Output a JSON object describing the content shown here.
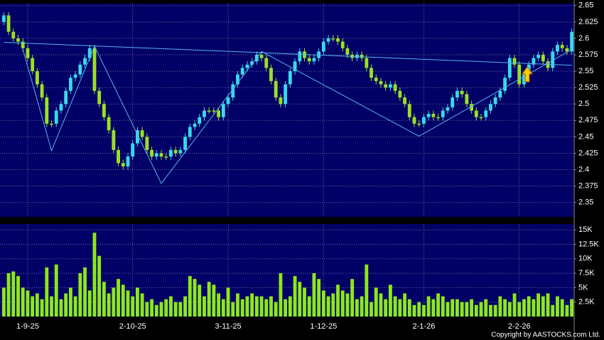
{
  "chart_data": {
    "type": "candlestick",
    "categories": [
      null,
      null,
      null,
      null,
      null,
      "1-9-25",
      null,
      null,
      null,
      null,
      null,
      null,
      null,
      null,
      null,
      null,
      null,
      null,
      null,
      null,
      null,
      null,
      null,
      null,
      null,
      null,
      null,
      "2-10-25",
      null,
      null,
      null,
      null,
      null,
      null,
      null,
      null,
      null,
      null,
      null,
      null,
      null,
      null,
      null,
      null,
      null,
      null,
      null,
      "3-11-25",
      null,
      null,
      null,
      null,
      null,
      null,
      null,
      null,
      null,
      null,
      null,
      null,
      null,
      null,
      null,
      null,
      null,
      null,
      null,
      "1-12-25",
      null,
      null,
      null,
      null,
      null,
      null,
      null,
      null,
      null,
      null,
      null,
      null,
      null,
      null,
      null,
      null,
      null,
      null,
      null,
      null,
      "2-1-26",
      null,
      null,
      null,
      null,
      null,
      null,
      null,
      null,
      null,
      null,
      null,
      null,
      null,
      null,
      null,
      null,
      null,
      null,
      null,
      "2-2-26",
      null,
      null,
      null,
      null,
      null,
      null,
      null,
      null,
      null,
      null,
      null
    ],
    "open": [
      2.625,
      2.635,
      2.61,
      2.6,
      2.595,
      2.585,
      2.57,
      2.55,
      2.53,
      2.51,
      2.47,
      2.47,
      2.49,
      2.5,
      2.52,
      2.54,
      2.545,
      2.56,
      2.57,
      2.585,
      2.52,
      2.5,
      2.48,
      2.46,
      2.43,
      2.41,
      2.405,
      2.42,
      2.44,
      2.46,
      2.45,
      2.43,
      2.42,
      2.425,
      2.42,
      2.42,
      2.43,
      2.425,
      2.43,
      2.45,
      2.465,
      2.47,
      2.48,
      2.49,
      2.49,
      2.49,
      2.48,
      2.5,
      2.51,
      2.53,
      2.545,
      2.555,
      2.56,
      2.565,
      2.575,
      2.57,
      2.555,
      2.535,
      2.51,
      2.5,
      2.53,
      2.55,
      2.565,
      2.58,
      2.57,
      2.565,
      2.57,
      2.58,
      2.595,
      2.6,
      2.6,
      2.595,
      2.585,
      2.575,
      2.57,
      2.575,
      2.57,
      2.555,
      2.54,
      2.535,
      2.53,
      2.525,
      2.53,
      2.52,
      2.51,
      2.5,
      2.48,
      2.47,
      2.47,
      2.48,
      2.485,
      2.48,
      2.48,
      2.49,
      2.495,
      2.51,
      2.52,
      2.515,
      2.5,
      2.49,
      2.48,
      2.48,
      2.49,
      2.5,
      2.51,
      2.52,
      2.54,
      2.57,
      2.56,
      2.53,
      2.545,
      2.56,
      2.57,
      2.575,
      2.565,
      2.555,
      2.58,
      2.59,
      2.585,
      2.58
    ],
    "high": [
      2.64,
      2.64,
      2.615,
      2.605,
      2.6,
      2.59,
      2.575,
      2.555,
      2.535,
      2.515,
      2.475,
      2.495,
      2.505,
      2.525,
      2.545,
      2.55,
      2.565,
      2.575,
      2.59,
      2.59,
      2.525,
      2.505,
      2.485,
      2.465,
      2.435,
      2.415,
      2.425,
      2.445,
      2.465,
      2.465,
      2.455,
      2.435,
      2.43,
      2.43,
      2.425,
      2.435,
      2.435,
      2.435,
      2.455,
      2.47,
      2.475,
      2.485,
      2.495,
      2.495,
      2.495,
      2.495,
      2.505,
      2.515,
      2.535,
      2.55,
      2.56,
      2.565,
      2.57,
      2.58,
      2.58,
      2.575,
      2.56,
      2.54,
      2.515,
      2.535,
      2.555,
      2.57,
      2.585,
      2.585,
      2.575,
      2.575,
      2.585,
      2.6,
      2.605,
      2.605,
      2.605,
      2.6,
      2.59,
      2.58,
      2.58,
      2.58,
      2.575,
      2.56,
      2.545,
      2.54,
      2.535,
      2.535,
      2.535,
      2.525,
      2.515,
      2.505,
      2.485,
      2.475,
      2.485,
      2.49,
      2.49,
      2.485,
      2.495,
      2.5,
      2.515,
      2.525,
      2.525,
      2.52,
      2.505,
      2.495,
      2.485,
      2.495,
      2.505,
      2.515,
      2.525,
      2.545,
      2.575,
      2.575,
      2.565,
      2.55,
      2.565,
      2.575,
      2.58,
      2.58,
      2.57,
      2.585,
      2.595,
      2.595,
      2.59,
      2.615
    ],
    "low": [
      2.62,
      2.605,
      2.595,
      2.59,
      2.58,
      2.565,
      2.545,
      2.525,
      2.505,
      2.465,
      2.465,
      2.465,
      2.485,
      2.495,
      2.515,
      2.535,
      2.54,
      2.555,
      2.565,
      2.515,
      2.495,
      2.475,
      2.455,
      2.425,
      2.405,
      2.4,
      2.4,
      2.415,
      2.435,
      2.445,
      2.425,
      2.415,
      2.415,
      2.415,
      2.415,
      2.415,
      2.42,
      2.42,
      2.425,
      2.445,
      2.46,
      2.465,
      2.475,
      2.485,
      2.485,
      2.475,
      2.475,
      2.495,
      2.505,
      2.525,
      2.54,
      2.55,
      2.555,
      2.56,
      2.565,
      2.55,
      2.53,
      2.505,
      2.495,
      2.495,
      2.525,
      2.545,
      2.56,
      2.565,
      2.56,
      2.56,
      2.565,
      2.575,
      2.59,
      2.595,
      2.59,
      2.58,
      2.57,
      2.565,
      2.565,
      2.565,
      2.55,
      2.535,
      2.53,
      2.525,
      2.52,
      2.52,
      2.515,
      2.505,
      2.495,
      2.475,
      2.465,
      2.465,
      2.465,
      2.475,
      2.475,
      2.475,
      2.475,
      2.485,
      2.49,
      2.505,
      2.51,
      2.495,
      2.485,
      2.475,
      2.475,
      2.475,
      2.485,
      2.495,
      2.505,
      2.515,
      2.535,
      2.555,
      2.525,
      2.525,
      2.54,
      2.555,
      2.565,
      2.56,
      2.55,
      2.55,
      2.575,
      2.58,
      2.575,
      2.575
    ],
    "close": [
      2.635,
      2.61,
      2.6,
      2.595,
      2.585,
      2.57,
      2.55,
      2.53,
      2.51,
      2.47,
      2.47,
      2.49,
      2.5,
      2.52,
      2.54,
      2.545,
      2.56,
      2.57,
      2.585,
      2.52,
      2.5,
      2.48,
      2.46,
      2.43,
      2.41,
      2.405,
      2.42,
      2.44,
      2.46,
      2.45,
      2.43,
      2.42,
      2.425,
      2.42,
      2.42,
      2.43,
      2.425,
      2.43,
      2.45,
      2.465,
      2.47,
      2.48,
      2.49,
      2.49,
      2.49,
      2.48,
      2.5,
      2.51,
      2.53,
      2.545,
      2.555,
      2.56,
      2.565,
      2.575,
      2.57,
      2.555,
      2.535,
      2.51,
      2.5,
      2.53,
      2.55,
      2.565,
      2.58,
      2.57,
      2.565,
      2.57,
      2.58,
      2.595,
      2.6,
      2.6,
      2.595,
      2.585,
      2.575,
      2.57,
      2.575,
      2.57,
      2.555,
      2.54,
      2.535,
      2.53,
      2.525,
      2.53,
      2.52,
      2.51,
      2.5,
      2.48,
      2.47,
      2.47,
      2.48,
      2.485,
      2.48,
      2.48,
      2.49,
      2.495,
      2.51,
      2.52,
      2.515,
      2.5,
      2.49,
      2.48,
      2.48,
      2.49,
      2.5,
      2.51,
      2.52,
      2.54,
      2.57,
      2.56,
      2.53,
      2.545,
      2.56,
      2.57,
      2.575,
      2.565,
      2.555,
      2.58,
      2.59,
      2.585,
      2.58,
      2.61
    ],
    "up_color": "#3ad8ee",
    "down_color": "#9be024",
    "ylim": [
      2.328,
      2.653
    ],
    "yticks": [
      2.35,
      2.375,
      2.4,
      2.425,
      2.45,
      2.475,
      2.5,
      2.525,
      2.55,
      2.575,
      2.6,
      2.625,
      2.65
    ],
    "grid": true,
    "trendline_color": "#5ab4f0",
    "trendlines": [
      {
        "x": [
          0,
          119
        ],
        "y": [
          2.594,
          2.559
        ]
      },
      {
        "x": [
          4,
          10,
          19,
          33,
          54,
          87,
          119
        ],
        "y": [
          2.583,
          2.429,
          2.588,
          2.379,
          2.58,
          2.451,
          2.583
        ]
      }
    ],
    "volume": {
      "type": "bar",
      "color": "#8ee81a",
      "values": [
        5000,
        7500,
        7800,
        7000,
        5000,
        4500,
        3500,
        4000,
        3000,
        8500,
        3500,
        9000,
        3000,
        4000,
        5000,
        3500,
        7500,
        8500,
        4500,
        14500,
        10500,
        6000,
        4000,
        5000,
        6500,
        5500,
        4500,
        3500,
        5000,
        4000,
        2500,
        3000,
        2000,
        2500,
        3000,
        3500,
        2500,
        2500,
        3500,
        7000,
        6500,
        5500,
        3500,
        6000,
        5500,
        4000,
        3000,
        5000,
        2500,
        4000,
        3000,
        3500,
        4000,
        3500,
        3500,
        3000,
        3500,
        2500,
        7500,
        3000,
        3500,
        7000,
        6000,
        5000,
        3500,
        7500,
        6500,
        4500,
        3500,
        4000,
        5500,
        4500,
        4000,
        6500,
        3000,
        3500,
        9000,
        2500,
        5000,
        4000,
        3000,
        5500,
        3500,
        3000,
        4000,
        3000,
        2000,
        2500,
        2000,
        3500,
        3000,
        4000,
        3500,
        2500,
        3000,
        3000,
        2500,
        2500,
        3000,
        2000,
        2500,
        3000,
        2000,
        2000,
        3500,
        3000,
        2500,
        4000,
        2500,
        3000,
        3500,
        3000,
        4000,
        3500,
        4000,
        2000,
        3500,
        3000,
        2000,
        3000
      ],
      "ylim": [
        0,
        16000
      ],
      "yticks": [
        {
          "value": 2500,
          "label": "2.5K"
        },
        {
          "value": 5000,
          "label": "5K"
        },
        {
          "value": 7500,
          "label": "7.5K"
        },
        {
          "value": 10000,
          "label": "10K"
        },
        {
          "value": 12500,
          "label": "12.5K"
        },
        {
          "value": 15000,
          "label": "15K"
        }
      ]
    },
    "source": "Copyright by AASTOCKS.com Ltd."
  }
}
